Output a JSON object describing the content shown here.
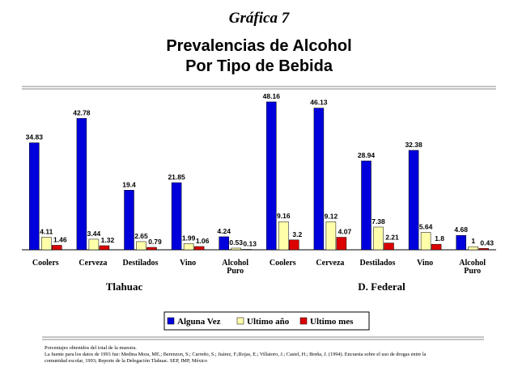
{
  "kicker": "Gráfica 7",
  "title_line1": "Prevalencias de Alcohol",
  "title_line2": "Por Tipo de Bebida",
  "colors": {
    "alguna_vez": "#0000dd",
    "ultimo_ano": "#ffffaa",
    "ultimo_mes": "#dd0000"
  },
  "chart_data": {
    "type": "bar",
    "categories": [
      "Coolers",
      "Cerveza",
      "Destilados",
      "Vino",
      "Alcohol Puro"
    ],
    "groups": [
      {
        "name": "Tlahuac",
        "series": [
          {
            "name": "Alguna Vez",
            "values": [
              34.83,
              42.78,
              19.4,
              21.85,
              4.24
            ]
          },
          {
            "name": "Ultimo año",
            "values": [
              4.11,
              3.44,
              2.65,
              1.99,
              0.53
            ]
          },
          {
            "name": "Ultimo mes",
            "values": [
              1.46,
              1.32,
              0.79,
              1.06,
              0.13
            ]
          }
        ]
      },
      {
        "name": "D. Federal",
        "series": [
          {
            "name": "Alguna Vez",
            "values": [
              48.16,
              46.13,
              28.94,
              32.38,
              4.68
            ]
          },
          {
            "name": "Ultimo año",
            "values": [
              9.16,
              9.12,
              7.38,
              5.64,
              1
            ]
          },
          {
            "name": "Ultimo mes",
            "values": [
              3.2,
              4.07,
              2.21,
              1.8,
              0.43
            ]
          }
        ]
      }
    ],
    "legend": [
      "Alguna Vez",
      "Ultimo año",
      "Ultimo mes"
    ],
    "legend_position": "bottom",
    "ylim": [
      0,
      50
    ]
  },
  "footnote_line1": "Porcentajes obtenidos del total de la muestra.",
  "footnote_line2": "La fuente para los datos de 1993 fue: Medina Mora, ME.; Berenzon, S.; Carreño, S.; Juárez, F.;Rojas, E.; Villatoro, J.; Casiel, H.; Breña, J. (1994). Encuesta sobre el uso de drogas entre la",
  "footnote_line3": "comunidad escolar, 1993; Reporte de la Delegación Tlahuac. SEP, IMP, México"
}
